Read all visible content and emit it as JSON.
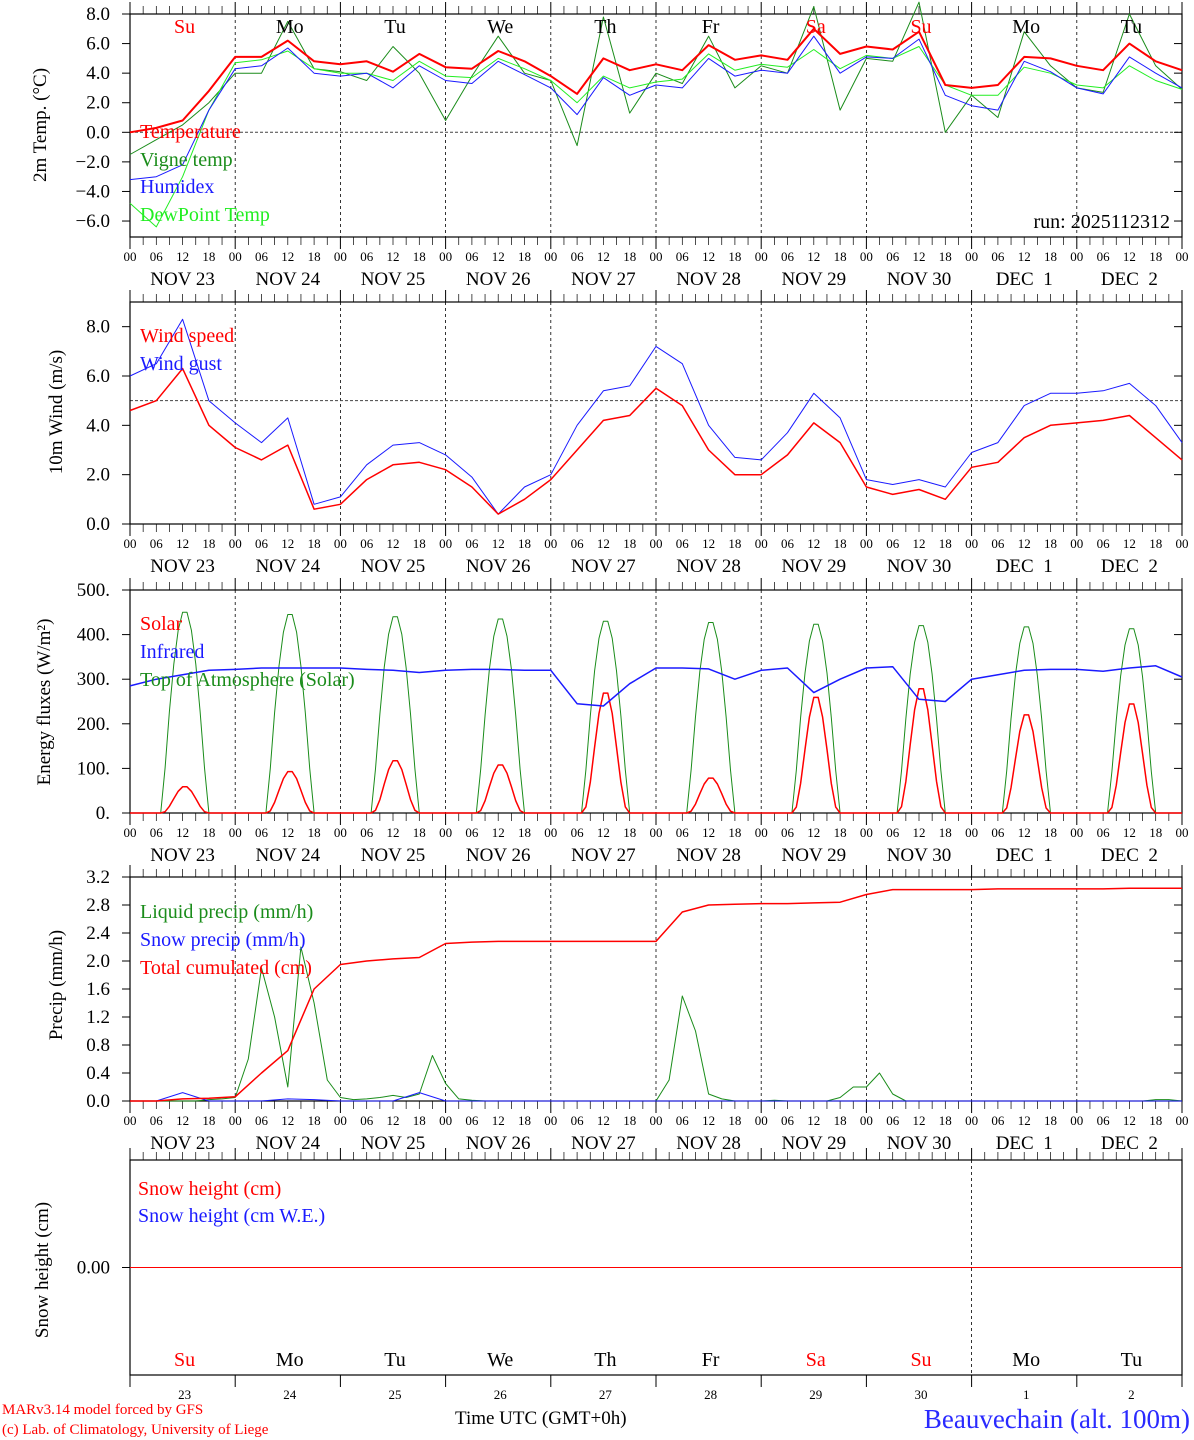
{
  "hour_labels": [
    "00",
    "06",
    "12",
    "18"
  ],
  "date_labels": [
    "NOV 23",
    "NOV 24",
    "NOV 25",
    "NOV 26",
    "NOV 27",
    "NOV 28",
    "NOV 29",
    "NOV 30",
    "DEC  1",
    "DEC  2"
  ],
  "final_hour_label": "00",
  "weekdays": [
    {
      "label": "Su",
      "color": "#ff0000"
    },
    {
      "label": "Mo",
      "color": "#000000"
    },
    {
      "label": "Tu",
      "color": "#000000"
    },
    {
      "label": "We",
      "color": "#000000"
    },
    {
      "label": "Th",
      "color": "#000000"
    },
    {
      "label": "Fr",
      "color": "#000000"
    },
    {
      "label": "Sa",
      "color": "#ff0000"
    },
    {
      "label": "Su",
      "color": "#ff0000"
    },
    {
      "label": "Mo",
      "color": "#000000"
    },
    {
      "label": "Tu",
      "color": "#000000"
    }
  ],
  "day_numbers": [
    "23",
    "24",
    "25",
    "26",
    "27",
    "28",
    "29",
    "30",
    "1",
    "2"
  ],
  "run_label": "run: 2025112312",
  "footer": {
    "model": "MARv3.14 model forced by GFS",
    "copyright": "(c) Lab. of Climatology, University of Liege",
    "xlabel": "Time UTC (GMT+0h)",
    "station": "Beauvechain (alt. 100m)"
  },
  "chart_data": [
    {
      "type": "line",
      "ylabel": "2m Temp. (°C)",
      "x_unit": "hours since NOV 23 00 UTC",
      "xlim": [
        0,
        240
      ],
      "ylim": [
        -7,
        8
      ],
      "yticks": [
        8,
        6,
        4,
        2,
        0,
        -2,
        -4,
        -6
      ],
      "ytick_labels": [
        "8.0",
        "6.0",
        "4.0",
        "2.0",
        "0.0",
        "−2.0",
        "−4.0",
        "−6.0"
      ],
      "ref_line": 0,
      "series": [
        {
          "name": "Vigne temp",
          "color": "#1a8c1a",
          "width": 1,
          "step": 6,
          "values": [
            -1.5,
            -0.5,
            0.5,
            2.0,
            4.0,
            4.0,
            7.5,
            4.3,
            4.1,
            3.5,
            5.8,
            4.0,
            0.8,
            3.8,
            6.5,
            4.0,
            3.5,
            -0.9,
            7.8,
            1.3,
            4.0,
            3.3,
            6.5,
            3.0,
            4.5,
            4.0,
            8.5,
            1.5,
            5.0,
            4.8,
            8.8,
            0.0,
            2.5,
            1.0,
            6.8,
            4.5,
            3.0,
            2.7,
            8.0,
            4.5,
            2.9
          ]
        },
        {
          "name": "DewPoint Temp",
          "color": "#22ee22",
          "width": 1,
          "step": 6,
          "values": [
            -4.8,
            -6.4,
            -3.0,
            1.5,
            4.7,
            4.9,
            5.5,
            4.3,
            4.0,
            4.0,
            3.5,
            4.8,
            3.8,
            3.7,
            5.0,
            4.3,
            3.5,
            2.0,
            3.8,
            3.0,
            3.4,
            3.6,
            5.3,
            4.2,
            4.6,
            4.4,
            5.6,
            4.3,
            5.2,
            5.0,
            5.8,
            3.2,
            2.5,
            2.5,
            4.4,
            4.0,
            3.2,
            3.0,
            4.5,
            3.5,
            2.9
          ]
        },
        {
          "name": "Humidex",
          "color": "#1a1aff",
          "width": 1,
          "step": 6,
          "values": [
            -3.2,
            -3.0,
            -2.2,
            1.5,
            4.3,
            4.5,
            5.7,
            4.0,
            3.8,
            4.0,
            3.0,
            4.5,
            3.5,
            3.3,
            4.8,
            3.9,
            3.0,
            1.2,
            3.7,
            2.5,
            3.2,
            3.0,
            5.0,
            3.8,
            4.2,
            4.0,
            6.5,
            4.0,
            5.1,
            5.0,
            6.3,
            2.5,
            1.8,
            1.5,
            4.8,
            4.1,
            3.0,
            2.6,
            5.1,
            4.0,
            3.0
          ]
        },
        {
          "name": "Temperature",
          "color": "#ff0000",
          "width": 2,
          "step": 6,
          "values": [
            0.0,
            0.3,
            0.8,
            2.8,
            5.1,
            5.1,
            6.2,
            4.8,
            4.6,
            4.8,
            4.1,
            5.3,
            4.4,
            4.3,
            5.5,
            4.8,
            3.8,
            2.6,
            5.0,
            4.2,
            4.6,
            4.2,
            5.9,
            4.9,
            5.2,
            4.9,
            7.0,
            5.3,
            5.8,
            5.6,
            6.8,
            3.2,
            3.0,
            3.2,
            5.1,
            5.0,
            4.5,
            4.2,
            6.0,
            4.8,
            4.2
          ]
        }
      ],
      "legend_order": [
        "Temperature",
        "Vigne temp",
        "Humidex",
        "DewPoint Temp"
      ],
      "legend_placement": "top-left"
    },
    {
      "type": "line",
      "ylabel": "10m Wind (m/s)",
      "xlim": [
        0,
        240
      ],
      "ylim": [
        0,
        9
      ],
      "yticks": [
        8,
        6,
        4,
        2,
        0
      ],
      "ytick_labels": [
        "8.0",
        "6.0",
        "4.0",
        "2.0",
        "0.0"
      ],
      "ref_line": 5,
      "series": [
        {
          "name": "Wind gust",
          "color": "#1a1aff",
          "width": 1,
          "step": 6,
          "values": [
            6.0,
            6.5,
            8.3,
            5.0,
            4.1,
            3.3,
            4.3,
            0.8,
            1.1,
            2.4,
            3.2,
            3.3,
            2.8,
            1.9,
            0.4,
            1.5,
            2.0,
            4.0,
            5.4,
            5.6,
            7.2,
            6.5,
            4.0,
            2.7,
            2.6,
            3.7,
            5.3,
            4.3,
            1.8,
            1.6,
            1.8,
            1.5,
            2.9,
            3.3,
            4.8,
            5.3,
            5.3,
            5.4,
            5.7,
            4.8,
            3.3
          ]
        },
        {
          "name": "Wind speed",
          "color": "#ff0000",
          "width": 1.5,
          "step": 6,
          "values": [
            4.6,
            5.0,
            6.3,
            4.0,
            3.1,
            2.6,
            3.2,
            0.6,
            0.8,
            1.8,
            2.4,
            2.5,
            2.2,
            1.5,
            0.4,
            1.0,
            1.8,
            3.0,
            4.2,
            4.4,
            5.5,
            4.8,
            3.0,
            2.0,
            2.0,
            2.8,
            4.1,
            3.3,
            1.5,
            1.2,
            1.4,
            1.0,
            2.3,
            2.5,
            3.5,
            4.0,
            4.1,
            4.2,
            4.4,
            3.5,
            2.6
          ]
        }
      ],
      "legend_order": [
        "Wind speed",
        "Wind gust"
      ],
      "legend_placement": "top-left"
    },
    {
      "type": "line",
      "ylabel": "Energy fluxes (W/m²)",
      "xlim": [
        0,
        240
      ],
      "ylim": [
        0,
        500
      ],
      "yticks": [
        500,
        400,
        300,
        200,
        100,
        0
      ],
      "ytick_labels": [
        "500.",
        "400.",
        "300.",
        "200.",
        "100.",
        "0."
      ],
      "daily_peaks": {
        "Top of Atmosphere (Solar)": [
          455,
          450,
          445,
          440,
          435,
          432,
          428,
          425,
          422,
          418
        ],
        "Solar": [
          60,
          95,
          120,
          110,
          275,
          80,
          265,
          285,
          225,
          250
        ]
      },
      "series": [
        {
          "name": "Top of Atmosphere (Solar)",
          "color": "#1a8c1a",
          "width": 1,
          "diurnal": true,
          "power": 1
        },
        {
          "name": "Solar",
          "color": "#ff0000",
          "width": 1.5,
          "diurnal": true,
          "power": 2
        },
        {
          "name": "Infrared",
          "color": "#1a1aff",
          "width": 1.5,
          "step": 6,
          "values": [
            285,
            300,
            310,
            320,
            322,
            325,
            325,
            325,
            325,
            322,
            320,
            315,
            320,
            322,
            322,
            320,
            320,
            245,
            240,
            290,
            325,
            325,
            323,
            300,
            320,
            325,
            270,
            300,
            325,
            328,
            255,
            250,
            300,
            310,
            320,
            322,
            322,
            318,
            325,
            330,
            305
          ]
        }
      ],
      "legend_order": [
        "Solar",
        "Infrared",
        "Top of Atmosphere (Solar)"
      ],
      "legend_placement": "top-left"
    },
    {
      "type": "line",
      "ylabel": "Precip (mm/h)",
      "xlim": [
        0,
        240
      ],
      "ylim": [
        0,
        3.2
      ],
      "yticks": [
        3.2,
        2.8,
        2.4,
        2.0,
        1.6,
        1.2,
        0.8,
        0.4,
        0.0
      ],
      "ytick_labels": [
        "3.2",
        "2.8",
        "2.4",
        "2.0",
        "1.6",
        "1.2",
        "0.8",
        "0.4",
        "0.0"
      ],
      "series": [
        {
          "name": "Liquid precip (mm/h)",
          "color": "#1a8c1a",
          "width": 1,
          "step": 3,
          "values": [
            0,
            0,
            0,
            0,
            0,
            0,
            0.02,
            0.03,
            0.05,
            0.6,
            1.9,
            1.2,
            0.2,
            2.2,
            1.4,
            0.3,
            0.05,
            0.02,
            0.03,
            0.05,
            0.08,
            0.05,
            0.1,
            0.65,
            0.25,
            0.03,
            0.01,
            0,
            0,
            0,
            0,
            0,
            0,
            0,
            0,
            0,
            0,
            0,
            0,
            0,
            0,
            0.3,
            1.5,
            1.0,
            0.1,
            0.03,
            0,
            0,
            0,
            0.01,
            0,
            0,
            0,
            0,
            0.05,
            0.2,
            0.2,
            0.4,
            0.1,
            0,
            0,
            0,
            0,
            0,
            0,
            0,
            0,
            0,
            0,
            0,
            0,
            0,
            0,
            0,
            0,
            0,
            0,
            0,
            0.02,
            0.02,
            0
          ]
        },
        {
          "name": "Snow precip (mm/h)",
          "color": "#1a1aff",
          "width": 1,
          "step": 6,
          "values": [
            0,
            0,
            0.12,
            0,
            0,
            0,
            0.03,
            0.02,
            0,
            0,
            0,
            0.12,
            0,
            0,
            0,
            0,
            0,
            0,
            0,
            0,
            0,
            0,
            0,
            0,
            0,
            0,
            0,
            0,
            0,
            0,
            0,
            0,
            0,
            0,
            0,
            0,
            0,
            0,
            0,
            0,
            0
          ]
        },
        {
          "name": "Total cumulated (cm)",
          "color": "#ff0000",
          "width": 1.5,
          "step": 6,
          "values": [
            0,
            0,
            0.03,
            0.04,
            0.06,
            0.4,
            0.72,
            1.6,
            1.95,
            2.0,
            2.03,
            2.05,
            2.25,
            2.27,
            2.28,
            2.28,
            2.28,
            2.28,
            2.28,
            2.28,
            2.28,
            2.7,
            2.8,
            2.81,
            2.82,
            2.82,
            2.83,
            2.84,
            2.95,
            3.02,
            3.02,
            3.02,
            3.02,
            3.03,
            3.03,
            3.03,
            3.03,
            3.03,
            3.04,
            3.04,
            3.04
          ]
        }
      ],
      "legend_order": [
        "Liquid precip (mm/h)",
        "Snow precip (mm/h)",
        "Total cumulated (cm)"
      ],
      "legend_placement": "top-left"
    },
    {
      "type": "line",
      "ylabel": "Snow height (cm)",
      "xlim": [
        0,
        240
      ],
      "ylim": [
        -1,
        1
      ],
      "yticks": [
        0
      ],
      "ytick_labels": [
        "0.00"
      ],
      "series": [
        {
          "name": "Snow height (cm W.E.)",
          "color": "#1a1aff",
          "width": 1,
          "step": 240,
          "values": [
            0,
            0
          ]
        },
        {
          "name": "Snow height (cm)",
          "color": "#ff0000",
          "width": 1,
          "step": 240,
          "values": [
            0,
            0
          ]
        }
      ],
      "legend_order": [
        "Snow height (cm)",
        "Snow height (cm W.E.)"
      ],
      "legend_placement": "top-left"
    }
  ]
}
